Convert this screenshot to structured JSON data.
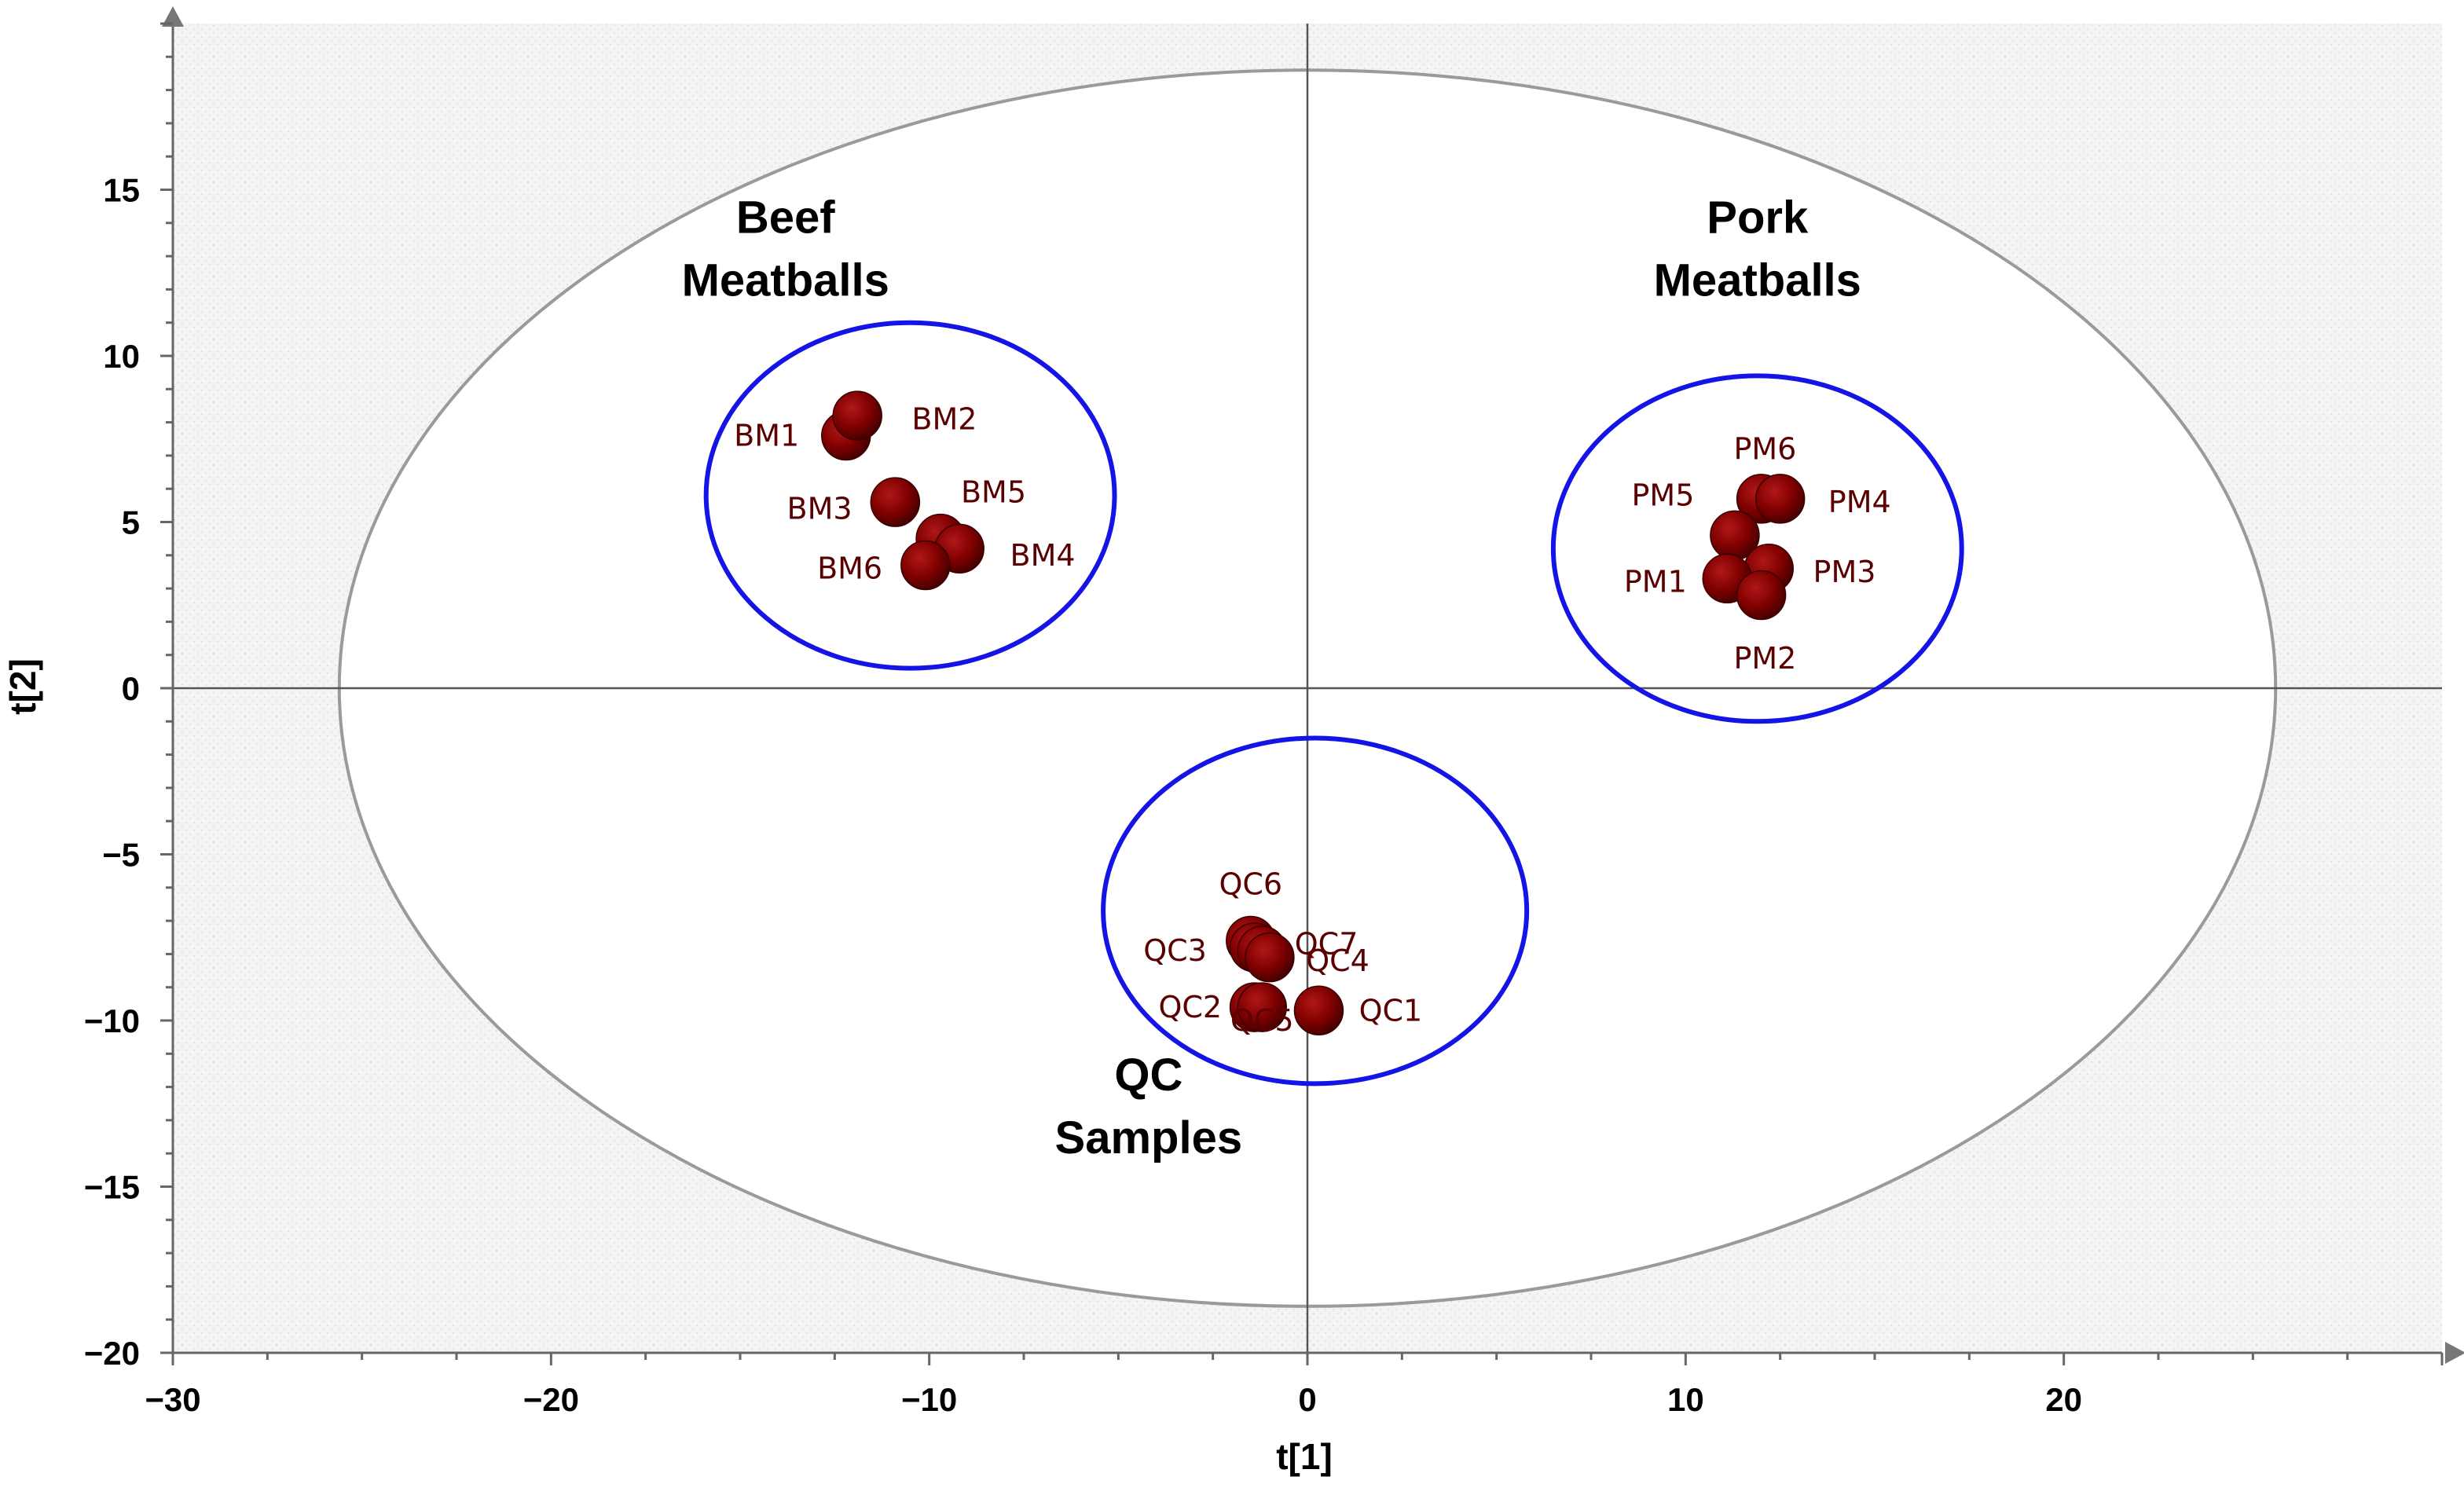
{
  "chart_data": {
    "type": "scatter",
    "title": "",
    "xlabel": "t[1]",
    "ylabel": "t[2]",
    "xlim": [
      -30,
      30
    ],
    "ylim": [
      -20,
      20
    ],
    "xticks": [
      -30,
      -20,
      -10,
      0,
      10,
      20
    ],
    "yticks": [
      -20,
      -15,
      -10,
      -5,
      0,
      5,
      10,
      15
    ],
    "tick_labels_x": [
      "−30",
      "−20",
      "−10",
      "0",
      "10",
      "20"
    ],
    "tick_labels_y": [
      "−20",
      "−15",
      "−10",
      "−5",
      "0",
      "5",
      "10",
      "15"
    ],
    "hotelling_ellipse": {
      "cx": 0,
      "cy": 0,
      "rx": 25.6,
      "ry": 18.6
    },
    "groups": [
      {
        "name": "Beef Meatballs",
        "lines": [
          "Beef",
          "Meatballs"
        ],
        "label_pos": [
          -13.8,
          13.7
        ],
        "circle": {
          "cx": -10.5,
          "cy": 5.8,
          "rx": 5.4,
          "ry": 5.2
        }
      },
      {
        "name": "Pork Meatballs",
        "lines": [
          "Pork",
          "Meatballs"
        ],
        "label_pos": [
          11.9,
          13.7
        ],
        "circle": {
          "cx": 11.9,
          "cy": 4.2,
          "rx": 5.4,
          "ry": 5.2
        }
      },
      {
        "name": "QC Samples",
        "lines": [
          "QC",
          "Samples"
        ],
        "label_pos": [
          -4.2,
          -12.1
        ],
        "circle": {
          "cx": 0.2,
          "cy": -6.7,
          "rx": 5.6,
          "ry": 5.2
        }
      }
    ],
    "series": [
      {
        "name": "Samples",
        "color": "#8a0000",
        "points": [
          {
            "label": "BM1",
            "x": -12.2,
            "y": 7.6,
            "lx": -14.3,
            "ly": 7.6
          },
          {
            "label": "BM2",
            "x": -11.9,
            "y": 8.2,
            "lx": -9.6,
            "ly": 8.1
          },
          {
            "label": "BM3",
            "x": -10.9,
            "y": 5.6,
            "lx": -12.9,
            "ly": 5.4
          },
          {
            "label": "BM5",
            "x": -9.7,
            "y": 4.5,
            "lx": -8.3,
            "ly": 5.9
          },
          {
            "label": "BM4",
            "x": -9.2,
            "y": 4.2,
            "lx": -7.0,
            "ly": 4.0
          },
          {
            "label": "BM6",
            "x": -10.1,
            "y": 3.7,
            "lx": -12.1,
            "ly": 3.6
          },
          {
            "label": "PM6",
            "x": 12.0,
            "y": 5.7,
            "lx": 12.1,
            "ly": 7.2
          },
          {
            "label": "PM4",
            "x": 12.5,
            "y": 5.7,
            "lx": 14.6,
            "ly": 5.6
          },
          {
            "label": "PM5",
            "x": 11.3,
            "y": 4.6,
            "lx": 9.4,
            "ly": 5.8
          },
          {
            "label": "PM3",
            "x": 12.2,
            "y": 3.6,
            "lx": 14.2,
            "ly": 3.5
          },
          {
            "label": "PM1",
            "x": 11.1,
            "y": 3.3,
            "lx": 9.2,
            "ly": 3.2
          },
          {
            "label": "PM2",
            "x": 12.0,
            "y": 2.8,
            "lx": 12.1,
            "ly": 0.9
          },
          {
            "label": "QC6",
            "x": -1.5,
            "y": -7.6,
            "lx": -1.5,
            "ly": -5.9
          },
          {
            "label": "QC3",
            "x": -1.4,
            "y": -7.8,
            "lx": -3.5,
            "ly": -7.9
          },
          {
            "label": "QC7",
            "x": -1.2,
            "y": -7.9,
            "lx": 0.5,
            "ly": -7.7
          },
          {
            "label": "QC4",
            "x": -1.0,
            "y": -8.1,
            "lx": 0.8,
            "ly": -8.2
          },
          {
            "label": "QC5",
            "x": -1.4,
            "y": -9.6,
            "lx": -1.2,
            "ly": -10.0
          },
          {
            "label": "QC2",
            "x": -1.2,
            "y": -9.6,
            "lx": -3.1,
            "ly": -9.6
          },
          {
            "label": "QC1",
            "x": 0.3,
            "y": -9.7,
            "lx": 2.2,
            "ly": -9.7
          }
        ]
      }
    ]
  }
}
